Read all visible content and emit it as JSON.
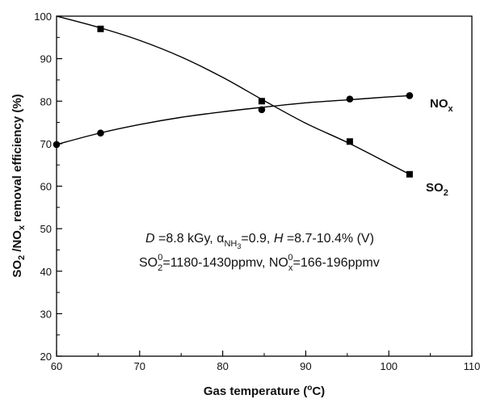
{
  "chart_data": {
    "type": "scatter",
    "x_label": {
      "main": "Gas temperature (",
      "sup": "o",
      "tail": "C)"
    },
    "y_label": {
      "p1": "SO",
      "s1": "2",
      "p2": " /NO",
      "s2": "x",
      "p3": " removal efficiency (%)"
    },
    "xlim": [
      60,
      110
    ],
    "ylim": [
      20,
      100
    ],
    "x_ticks": [
      60,
      70,
      80,
      90,
      100,
      110
    ],
    "y_ticks": [
      20,
      30,
      40,
      50,
      60,
      70,
      80,
      90,
      100
    ],
    "series": [
      {
        "name": "SO2",
        "label": {
          "main": "SO",
          "sub": "2"
        },
        "marker": "square",
        "x": [
          65.3,
          84.7,
          95.3,
          102.5
        ],
        "y": [
          97,
          80,
          70.5,
          62.8
        ],
        "curve": [
          [
            60,
            100
          ],
          [
            65,
            97.4
          ],
          [
            70,
            94.3
          ],
          [
            75,
            90.4
          ],
          [
            80,
            85.6
          ],
          [
            85,
            80.1
          ],
          [
            90,
            74.8
          ],
          [
            95,
            70.3
          ],
          [
            100,
            65.3
          ],
          [
            102.5,
            62.8
          ]
        ]
      },
      {
        "name": "NOx",
        "label": {
          "main": "NO",
          "sub": "x"
        },
        "marker": "circle",
        "x": [
          60,
          65.3,
          84.7,
          95.3,
          102.5
        ],
        "y": [
          69.8,
          72.5,
          78,
          80.5,
          81.3
        ],
        "curve": [
          [
            60,
            69.8
          ],
          [
            65,
            72.4
          ],
          [
            70,
            74.5
          ],
          [
            75,
            76.2
          ],
          [
            80,
            77.5
          ],
          [
            85,
            78.6
          ],
          [
            90,
            79.6
          ],
          [
            95,
            80.3
          ],
          [
            100,
            81
          ],
          [
            102.5,
            81.3
          ]
        ]
      }
    ],
    "annotation": {
      "line1": {
        "d_label": "D",
        "d_value": " =8.8 kGy, ",
        "alpha": "α",
        "alpha_sub": "NH",
        "alpha_sub2": "3",
        "alpha_value": "=0.9,  ",
        "h_label": "H",
        "h_value": " =8.7-10.4% (V)"
      },
      "line2": {
        "so": "SO",
        "so_sub": "2",
        "so_sup": "0",
        "so_value": "=1180-1430ppmv, ",
        "no": "NO",
        "no_sub": "x",
        "no_sup": "0",
        "no_value": "=166-196ppmv"
      }
    }
  }
}
